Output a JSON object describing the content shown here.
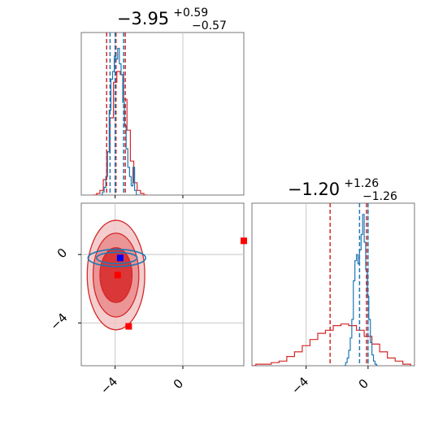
{
  "chart_data": {
    "type": "corner",
    "colors": {
      "red": "#d62728",
      "blue": "#1f77b4",
      "marker_blue": "#0000ff",
      "marker_red": "#ff0000"
    },
    "params": [
      {
        "name": "",
        "title": {
          "median": "−3.95",
          "upper": "+0.59",
          "lower": "−0.57"
        }
      },
      {
        "name": "",
        "title": {
          "median": "−1.20",
          "upper": "+1.26",
          "lower": "−1.26"
        }
      }
    ],
    "axes": {
      "x0": {
        "range": [
          -6.0,
          3.6
        ],
        "ticks": [
          -4,
          0
        ],
        "tick_labels": [
          "−4",
          "0"
        ]
      },
      "x1": {
        "range": [
          -7.5,
          3.0
        ],
        "ticks": [
          -4,
          0
        ],
        "tick_labels": [
          "−4",
          "0"
        ]
      },
      "y1": {
        "range": [
          -6.5,
          3.0
        ],
        "ticks": [
          0,
          -4
        ],
        "tick_labels": [
          "0",
          "−4"
        ]
      }
    },
    "hist_p0": {
      "grid": true,
      "blue": {
        "x": [
          -4.8,
          -4.7,
          -4.6,
          -4.5,
          -4.4,
          -4.3,
          -4.2,
          -4.1,
          -4.0,
          -3.9,
          -3.8,
          -3.7,
          -3.6,
          -3.5,
          -3.4,
          -3.3,
          -3.2,
          -3.1,
          -3.0,
          -2.9,
          -2.8,
          -2.7,
          -2.6
        ],
        "values": [
          0.0,
          0.02,
          0.05,
          0.12,
          0.28,
          0.55,
          0.75,
          0.8,
          0.9,
          0.88,
          0.95,
          0.85,
          0.78,
          0.6,
          0.45,
          0.3,
          0.18,
          0.12,
          0.06,
          0.18,
          0.03,
          0.0,
          0.0
        ]
      },
      "red": {
        "x": [
          -5.2,
          -5.0,
          -4.8,
          -4.6,
          -4.4,
          -4.2,
          -4.0,
          -3.8,
          -3.6,
          -3.4,
          -3.2,
          -3.0,
          -2.8,
          -2.6,
          -2.4,
          -2.2
        ],
        "values": [
          0.0,
          0.01,
          0.03,
          0.1,
          0.28,
          0.5,
          0.73,
          0.8,
          0.78,
          0.62,
          0.42,
          0.22,
          0.08,
          0.03,
          0.01,
          0.0
        ]
      },
      "blue_quantiles": [
        -4.3,
        -4.0,
        -3.5
      ],
      "red_quantiles": [
        -4.5,
        -3.95,
        -3.4
      ]
    },
    "hist_p1": {
      "grid": true,
      "blue": {
        "x": [
          -1.5,
          -1.4,
          -1.3,
          -1.2,
          -1.1,
          -1.0,
          -0.9,
          -0.8,
          -0.7,
          -0.6,
          -0.5,
          -0.4,
          -0.3,
          -0.2,
          -0.1,
          0.0,
          0.1,
          0.2,
          0.3,
          0.4,
          0.5,
          0.6
        ],
        "values": [
          0.0,
          0.02,
          0.05,
          0.1,
          0.18,
          0.3,
          0.55,
          0.68,
          0.72,
          0.66,
          0.75,
          0.85,
          0.98,
          0.8,
          0.62,
          0.45,
          0.3,
          0.15,
          0.07,
          0.03,
          0.01,
          0.0
        ]
      },
      "red": {
        "x": [
          -7.5,
          -7.0,
          -6.5,
          -6.0,
          -5.5,
          -5.0,
          -4.5,
          -4.0,
          -3.5,
          -3.0,
          -2.5,
          -2.0,
          -1.5,
          -1.0,
          -0.5,
          0.0,
          0.5,
          1.0,
          1.5,
          2.0,
          2.5
        ],
        "values": [
          0.0,
          0.01,
          0.01,
          0.02,
          0.03,
          0.06,
          0.09,
          0.13,
          0.17,
          0.21,
          0.23,
          0.26,
          0.27,
          0.26,
          0.23,
          0.19,
          0.14,
          0.09,
          0.05,
          0.03,
          0.01
        ]
      },
      "blue_quantiles": [
        -0.55,
        0.0
      ],
      "red_quantiles": [
        -2.45,
        -0.1
      ]
    },
    "scatter": {
      "grid": true,
      "red_contours": [
        {
          "level": "outer",
          "cx": -3.95,
          "cy": -1.2,
          "rx": 1.7,
          "ry": 3.2
        },
        {
          "level": "mid",
          "cx": -3.95,
          "cy": -1.2,
          "rx": 1.35,
          "ry": 2.45
        },
        {
          "level": "inner",
          "cx": -3.95,
          "cy": -1.2,
          "rx": 0.95,
          "ry": 1.6
        }
      ],
      "blue_contours": [
        {
          "level": "outer",
          "cx": -3.9,
          "cy": -0.2,
          "rx": 1.7,
          "ry": 0.5
        },
        {
          "level": "inner",
          "cx": -3.9,
          "cy": -0.2,
          "rx": 1.2,
          "ry": 0.33
        }
      ],
      "markers": [
        {
          "color": "blue",
          "x": -3.7,
          "y": -0.2
        },
        {
          "color": "red",
          "x": -3.85,
          "y": -1.2
        },
        {
          "color": "red",
          "x": -3.2,
          "y": -4.2
        },
        {
          "color": "red",
          "x": 3.6,
          "y": 0.8
        }
      ]
    }
  }
}
